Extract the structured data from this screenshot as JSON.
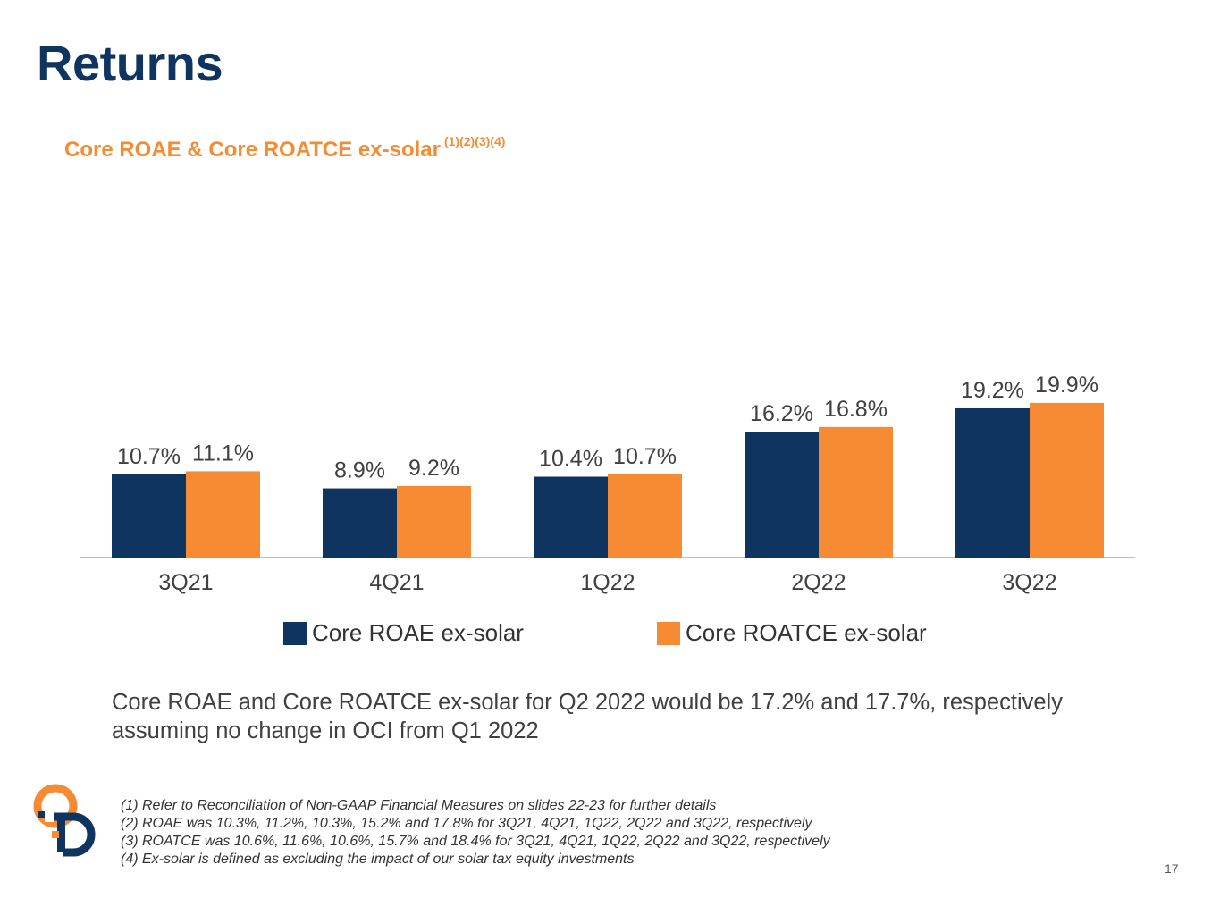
{
  "slide": {
    "title": "Returns",
    "subtitle": "Core ROAE & Core ROATCE ex-solar",
    "subtitle_refs": "(1)(2)(3)(4)",
    "note": "Core ROAE and Core ROATCE ex-solar for Q2 2022 would be 17.2% and 17.7%, respectively assuming no change in OCI from Q1 2022",
    "footnotes": [
      "(1) Refer to Reconciliation of Non-GAAP Financial Measures on slides 22-23 for further details",
      "(2) ROAE was 10.3%, 11.2%, 10.3%, 15.2% and 17.8% for 3Q21, 4Q21, 1Q22, 2Q22 and 3Q22, respectively",
      "(3) ROATCE was 10.6%, 11.6%, 10.6%, 15.7% and 18.4% for 3Q21, 4Q21, 1Q22, 2Q22 and 3Q22, respectively",
      "(4) Ex-solar is defined as excluding the impact of our solar tax equity investments"
    ],
    "page_number": "17"
  },
  "colors": {
    "navy": "#0f3460",
    "orange": "#f68b33",
    "axis": "#a6a6a6"
  },
  "logo_icon": "company-logo-icon",
  "chart_data": {
    "type": "bar",
    "categories": [
      "3Q21",
      "4Q21",
      "1Q22",
      "2Q22",
      "3Q22"
    ],
    "series": [
      {
        "name": "Core ROAE ex-solar",
        "values": [
          10.7,
          8.9,
          10.4,
          16.2,
          19.2
        ],
        "labels": [
          "10.7%",
          "8.9%",
          "10.4%",
          "16.2%",
          "19.2%"
        ],
        "color": "#0f3460"
      },
      {
        "name": "Core ROATCE ex-solar",
        "values": [
          11.1,
          9.2,
          10.7,
          16.8,
          19.9
        ],
        "labels": [
          "11.1%",
          "9.2%",
          "10.7%",
          "16.8%",
          "19.9%"
        ],
        "color": "#f68b33"
      }
    ],
    "ylim": [
      0,
      24
    ],
    "grid": false,
    "legend": "bottom"
  }
}
